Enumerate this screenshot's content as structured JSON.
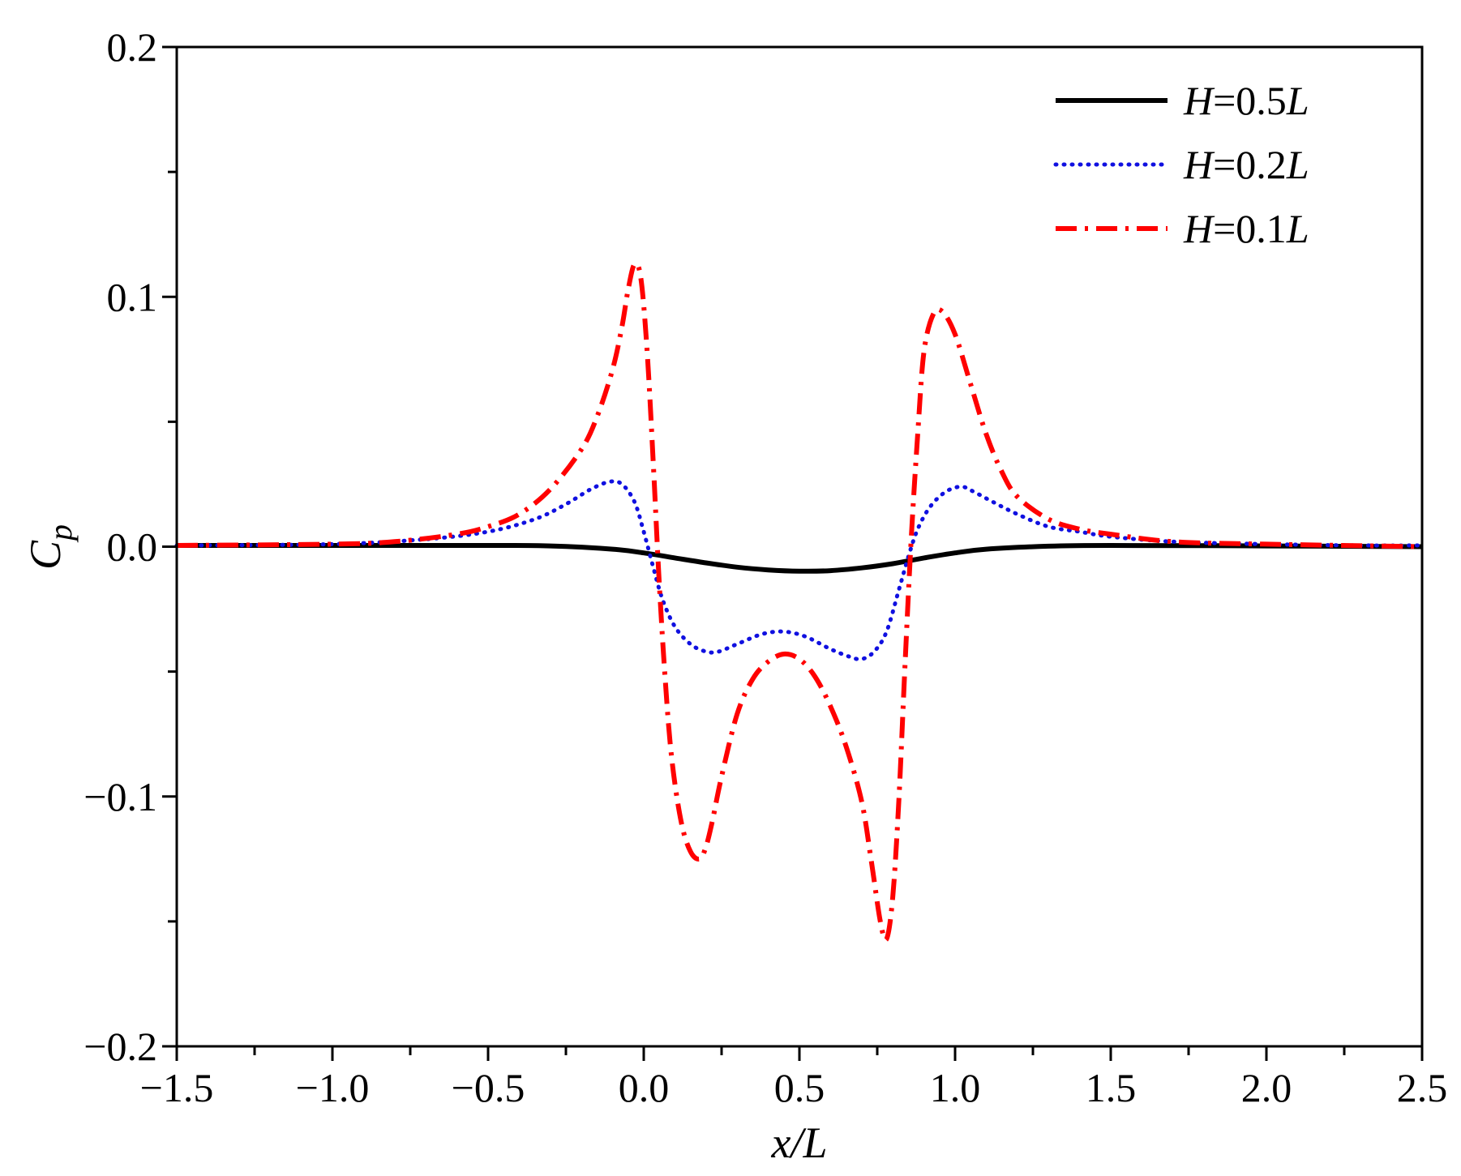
{
  "chart_data": {
    "type": "line",
    "title": "",
    "xlabel": "x/L",
    "ylabel": "C",
    "ylabel_sub": "p",
    "xlim": [
      -1.5,
      2.5
    ],
    "ylim": [
      -0.2,
      0.2
    ],
    "x_ticks": [
      -1.5,
      -1.0,
      -0.5,
      0.0,
      0.5,
      1.0,
      1.5,
      2.0,
      2.5
    ],
    "x_tick_labels": [
      "−1.5",
      "−1.0",
      "−0.5",
      "0.0",
      "0.5",
      "1.0",
      "1.5",
      "2.0",
      "2.5"
    ],
    "y_ticks": [
      -0.2,
      -0.1,
      0.0,
      0.1,
      0.2
    ],
    "y_tick_labels": [
      "−0.2",
      "−0.1",
      "0.0",
      "0.1",
      "0.2"
    ],
    "grid": false,
    "legend_position": "top-right",
    "series": [
      {
        "name": "H=0.5L",
        "label_italic": "H",
        "label_mid": "=0.5",
        "label_tail": "L",
        "color": "#000000",
        "style": "solid",
        "x": [
          -1.5,
          -1.0,
          -0.5,
          -0.3,
          -0.1,
          0.0,
          0.1,
          0.2,
          0.3,
          0.4,
          0.5,
          0.6,
          0.7,
          0.8,
          0.9,
          1.0,
          1.1,
          1.3,
          1.5,
          2.0,
          2.5
        ],
        "y": [
          0.0005,
          0.0005,
          0.0005,
          0.0003,
          -0.001,
          -0.0025,
          -0.0045,
          -0.0065,
          -0.0082,
          -0.0093,
          -0.0098,
          -0.0096,
          -0.0085,
          -0.0068,
          -0.0045,
          -0.0025,
          -0.001,
          0.0002,
          0.0005,
          0.0003,
          0.0
        ]
      },
      {
        "name": "H=0.2L",
        "label_italic": "H",
        "label_mid": "=0.2",
        "label_tail": "L",
        "color": "#1010e0",
        "style": "dotted",
        "x": [
          -1.5,
          -1.0,
          -0.7,
          -0.5,
          -0.35,
          -0.25,
          -0.17,
          -0.11,
          -0.07,
          -0.03,
          0.0,
          0.03,
          0.06,
          0.1,
          0.15,
          0.2,
          0.24,
          0.3,
          0.38,
          0.45,
          0.52,
          0.6,
          0.66,
          0.7,
          0.74,
          0.78,
          0.82,
          0.85,
          0.88,
          0.92,
          0.97,
          1.02,
          1.06,
          1.12,
          1.2,
          1.3,
          1.4,
          1.5,
          1.7,
          2.0,
          2.3,
          2.5
        ],
        "y": [
          0.0005,
          0.001,
          0.003,
          0.006,
          0.011,
          0.017,
          0.023,
          0.026,
          0.025,
          0.018,
          0.006,
          -0.008,
          -0.021,
          -0.032,
          -0.039,
          -0.042,
          -0.042,
          -0.039,
          -0.035,
          -0.034,
          -0.036,
          -0.041,
          -0.044,
          -0.045,
          -0.042,
          -0.034,
          -0.017,
          -0.004,
          0.007,
          0.016,
          0.022,
          0.024,
          0.022,
          0.018,
          0.013,
          0.008,
          0.006,
          0.004,
          0.002,
          0.001,
          0.0005,
          0.0005
        ]
      },
      {
        "name": "H=0.1L",
        "label_italic": "H",
        "label_mid": "=0.1",
        "label_tail": "L",
        "color": "#ff0000",
        "style": "dashdot",
        "x": [
          -1.5,
          -1.0,
          -0.8,
          -0.6,
          -0.5,
          -0.4,
          -0.3,
          -0.2,
          -0.15,
          -0.1,
          -0.07,
          -0.05,
          -0.03,
          -0.01,
          0.01,
          0.03,
          0.05,
          0.07,
          0.09,
          0.12,
          0.15,
          0.18,
          0.2,
          0.22,
          0.25,
          0.3,
          0.35,
          0.4,
          0.45,
          0.5,
          0.55,
          0.6,
          0.65,
          0.7,
          0.73,
          0.76,
          0.78,
          0.8,
          0.82,
          0.84,
          0.86,
          0.88,
          0.9,
          0.93,
          0.96,
          1.0,
          1.05,
          1.1,
          1.15,
          1.2,
          1.3,
          1.4,
          1.5,
          1.7,
          2.0,
          2.5
        ],
        "y": [
          0.0005,
          0.001,
          0.002,
          0.005,
          0.008,
          0.013,
          0.023,
          0.039,
          0.052,
          0.071,
          0.088,
          0.103,
          0.113,
          0.108,
          0.08,
          0.035,
          -0.015,
          -0.055,
          -0.085,
          -0.11,
          -0.122,
          -0.125,
          -0.12,
          -0.11,
          -0.092,
          -0.067,
          -0.053,
          -0.046,
          -0.043,
          -0.045,
          -0.052,
          -0.064,
          -0.08,
          -0.102,
          -0.125,
          -0.15,
          -0.157,
          -0.14,
          -0.1,
          -0.045,
          0.005,
          0.045,
          0.078,
          0.093,
          0.094,
          0.085,
          0.065,
          0.045,
          0.03,
          0.02,
          0.011,
          0.007,
          0.005,
          0.002,
          0.001,
          0.0
        ]
      }
    ]
  }
}
